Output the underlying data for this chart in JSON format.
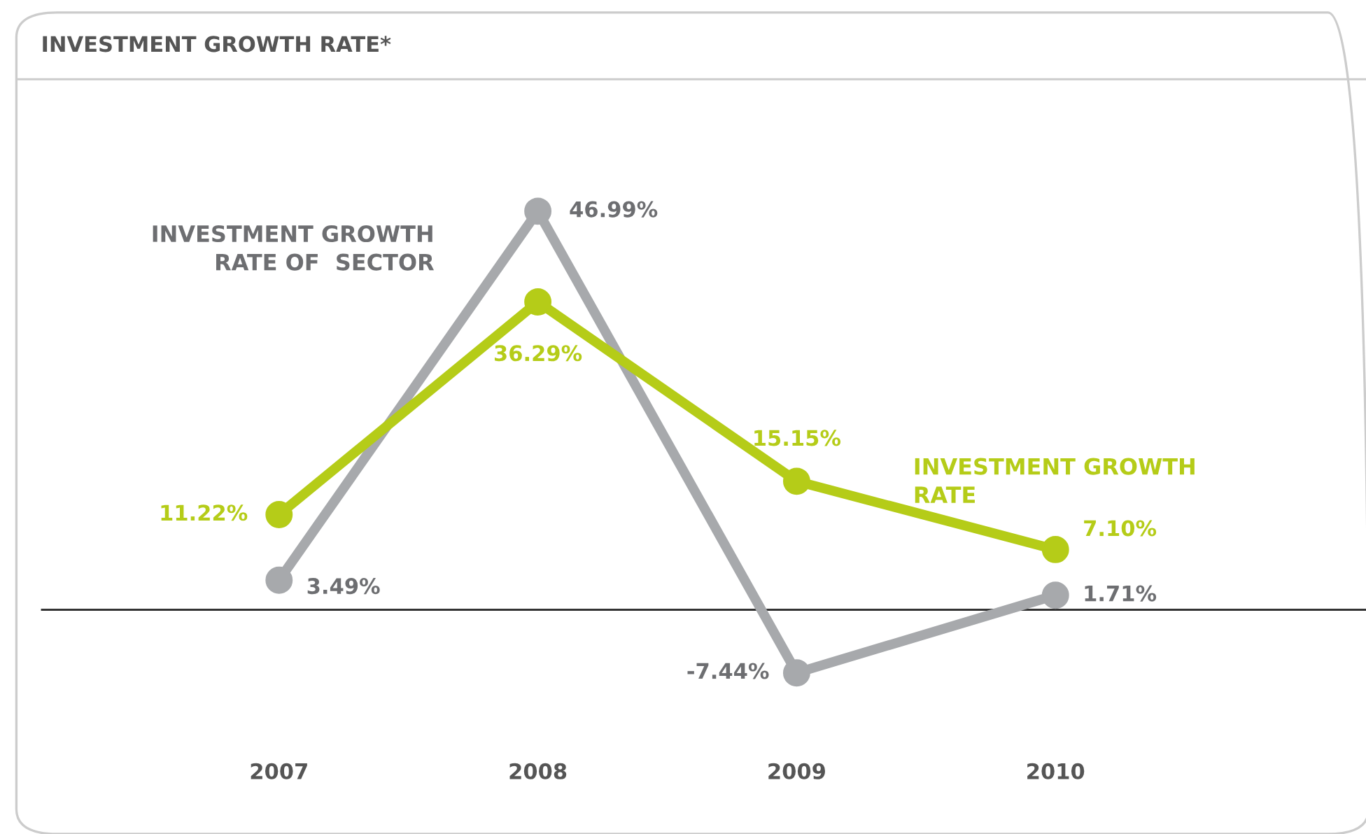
{
  "chart_data": {
    "type": "line",
    "title": "INVESTMENT GROWTH RATE*",
    "categories": [
      "2007",
      "2008",
      "2009",
      "2010"
    ],
    "series": [
      {
        "name": "INVESTMENT GROWTH RATE OF  SECTOR",
        "color": "#a7a9ac",
        "values": [
          3.49,
          46.99,
          -7.44,
          1.71
        ],
        "value_labels": [
          "3.49%",
          "46.99%",
          "-7.44%",
          "1.71%"
        ]
      },
      {
        "name": "INVESTMENT GROWTH RATE",
        "color": "#b5cc18",
        "values": [
          11.22,
          36.29,
          15.15,
          7.1
        ],
        "value_labels": [
          "11.22%",
          "36.29%",
          "15.15%",
          "7.10%"
        ]
      }
    ],
    "ref_lines": [
      {
        "axis": "y",
        "value": 0,
        "color": "#333333"
      }
    ],
    "marker": "circle",
    "line_style": "solid",
    "legend": false,
    "grid": false,
    "tick_labels": "x"
  }
}
